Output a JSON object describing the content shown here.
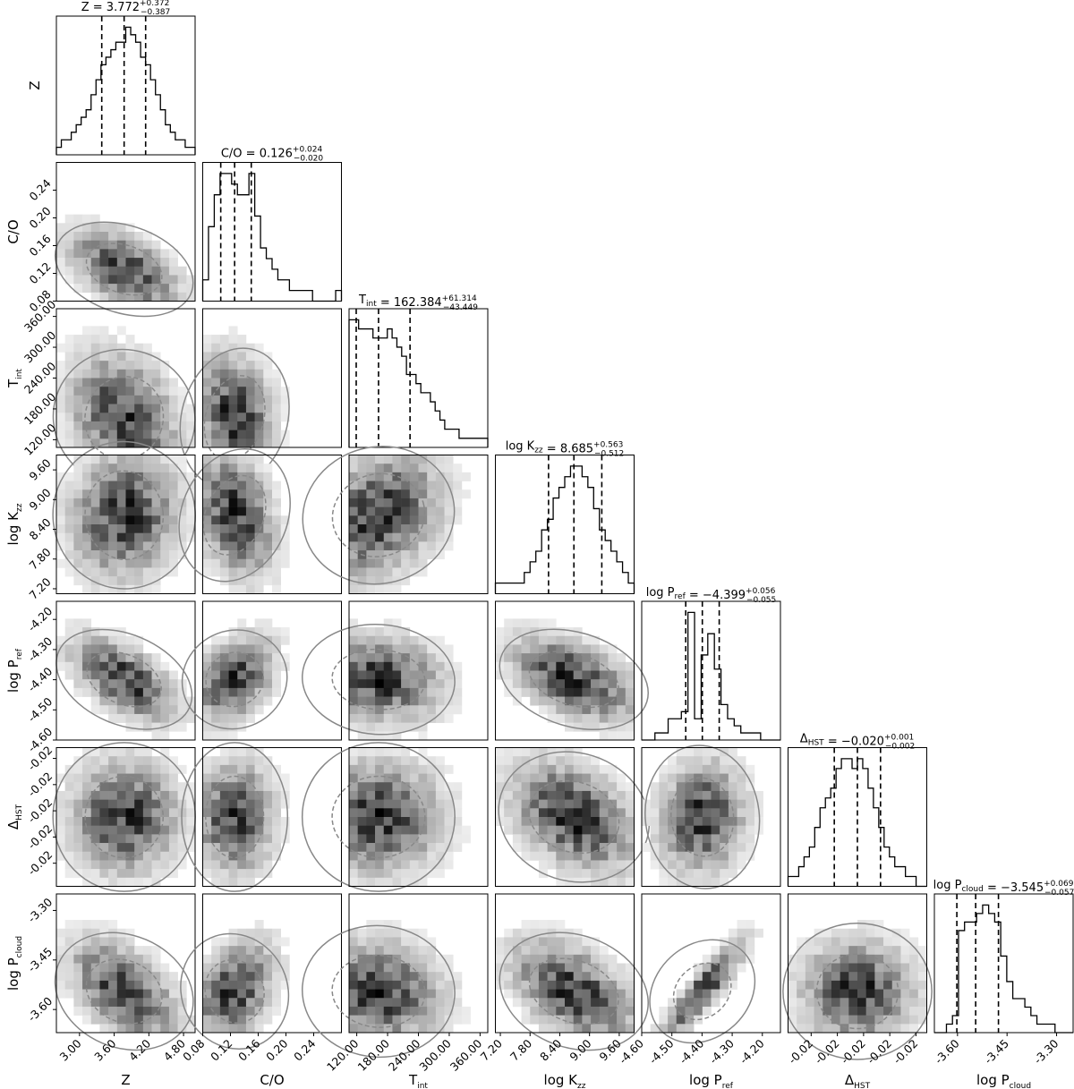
{
  "chart_data": {
    "type": "corner",
    "title": "",
    "parameters": [
      {
        "label": "Z",
        "median": "3.772",
        "plus": "+0.372",
        "minus": "−0.387",
        "range": [
          2.6,
          5.0
        ],
        "ticks": [
          3.0,
          3.6,
          4.2,
          4.8
        ],
        "tick_labels": [
          "3.00",
          "3.60",
          "4.20",
          "4.80"
        ]
      },
      {
        "label": "C/O",
        "median": "0.126",
        "plus": "+0.024",
        "minus": "−0.020",
        "range": [
          0.08,
          0.28
        ],
        "ticks": [
          0.08,
          0.12,
          0.16,
          0.2,
          0.24
        ],
        "tick_labels": [
          "0.08",
          "0.12",
          "0.16",
          "0.20",
          "0.24"
        ]
      },
      {
        "label": "T",
        "label_sub": "int",
        "median": "162.384",
        "plus": "+61.314",
        "minus": "−43.449",
        "range": [
          105,
          375
        ],
        "ticks": [
          120,
          180,
          240,
          300,
          360
        ],
        "tick_labels": [
          "120.00",
          "180.00",
          "240.00",
          "300.00",
          "360.00"
        ]
      },
      {
        "label": "log K",
        "label_sub": "zz",
        "median": "8.685",
        "plus": "+0.563",
        "minus": "−0.512",
        "range": [
          7.1,
          9.9
        ],
        "ticks": [
          7.2,
          7.8,
          8.4,
          9.0,
          9.6
        ],
        "tick_labels": [
          "7.20",
          "7.80",
          "8.40",
          "9.00",
          "9.60"
        ]
      },
      {
        "label": "log P",
        "label_sub": "ref",
        "median": "−4.399",
        "plus": "+0.056",
        "minus": "−0.055",
        "range": [
          -4.6,
          -4.14
        ],
        "ticks": [
          -4.6,
          -4.5,
          -4.4,
          -4.3,
          -4.2
        ],
        "tick_labels": [
          "-4.60",
          "-4.50",
          "-4.40",
          "-4.30",
          "-4.20"
        ]
      },
      {
        "label": "Δ",
        "label_sub": "HST",
        "median": "−0.020",
        "plus": "+0.001",
        "minus": "−0.002",
        "range": [
          -0.0245,
          -0.0155
        ],
        "ticks": [
          -0.023,
          -0.0213,
          -0.0196,
          -0.0179,
          -0.0162
        ],
        "tick_labels": [
          "-0.02",
          "-0.02",
          "-0.02",
          "-0.02",
          "-0.02"
        ]
      },
      {
        "label": "log P",
        "label_sub": "cloud",
        "median": "−3.545",
        "plus": "+0.069",
        "minus": "−0.057",
        "range": [
          -3.67,
          -3.25
        ],
        "ticks": [
          -3.6,
          -3.45,
          -3.3
        ],
        "tick_labels": [
          "-3.60",
          "-3.45",
          "-3.30"
        ]
      }
    ],
    "quantile_lines": {
      "Z": [
        3.385,
        3.772,
        4.144
      ],
      "C/O": [
        0.106,
        0.126,
        0.15
      ],
      "T_int": [
        118.935,
        162.384,
        223.698
      ],
      "log K_zz": [
        8.173,
        8.685,
        9.248
      ],
      "log P_ref": [
        -4.454,
        -4.399,
        -4.343
      ],
      "Delta_HST": [
        -0.0215,
        -0.02,
        -0.0185
      ],
      "log P_cloud": [
        -3.602,
        -3.545,
        -3.476
      ]
    },
    "histograms": {
      "Z": [
        1,
        2,
        2,
        3,
        4,
        5,
        6,
        8,
        10,
        12,
        13,
        14,
        15,
        15,
        17,
        16,
        15,
        13,
        12,
        10,
        8,
        6,
        4,
        3,
        2,
        2,
        1,
        1
      ],
      "C/O": [
        2,
        7,
        10,
        12,
        12,
        11,
        10,
        10,
        12,
        8,
        5,
        4,
        3,
        2,
        2,
        1,
        1,
        1,
        1,
        0,
        0,
        0,
        0,
        1
      ],
      "T_int": [
        14,
        14,
        13,
        13,
        13,
        12,
        12,
        12,
        13,
        12,
        11,
        10,
        8,
        8,
        7,
        6,
        6,
        5,
        4,
        3,
        2,
        2,
        2,
        1,
        1,
        1,
        1,
        1,
        1
      ],
      "log K_zz": [
        1,
        1,
        1,
        1,
        1,
        2,
        3,
        4,
        6,
        7,
        9,
        10,
        11,
        12,
        12,
        11,
        10,
        8,
        6,
        5,
        4,
        3,
        2,
        1
      ],
      "log P_ref": [
        0,
        0,
        1,
        1,
        3,
        3,
        4,
        18,
        3,
        12,
        15,
        10,
        5,
        3,
        2,
        1,
        1,
        1,
        0,
        0,
        0
      ],
      "Delta_HST": [
        1,
        1,
        2,
        3,
        4,
        6,
        8,
        9,
        10,
        12,
        13,
        13,
        12,
        13,
        12,
        10,
        8,
        6,
        4,
        3,
        2,
        2,
        1,
        1,
        0,
        0
      ],
      "log P_cloud": [
        0,
        0,
        1,
        2,
        12,
        13,
        13,
        14,
        15,
        14,
        13,
        9,
        6,
        4,
        4,
        3,
        2,
        1,
        1,
        1,
        0,
        0,
        0
      ]
    },
    "samples_per_panel": "2D histogram with 1-sigma (dashed) and 2-sigma (solid) contours",
    "grid": false
  }
}
